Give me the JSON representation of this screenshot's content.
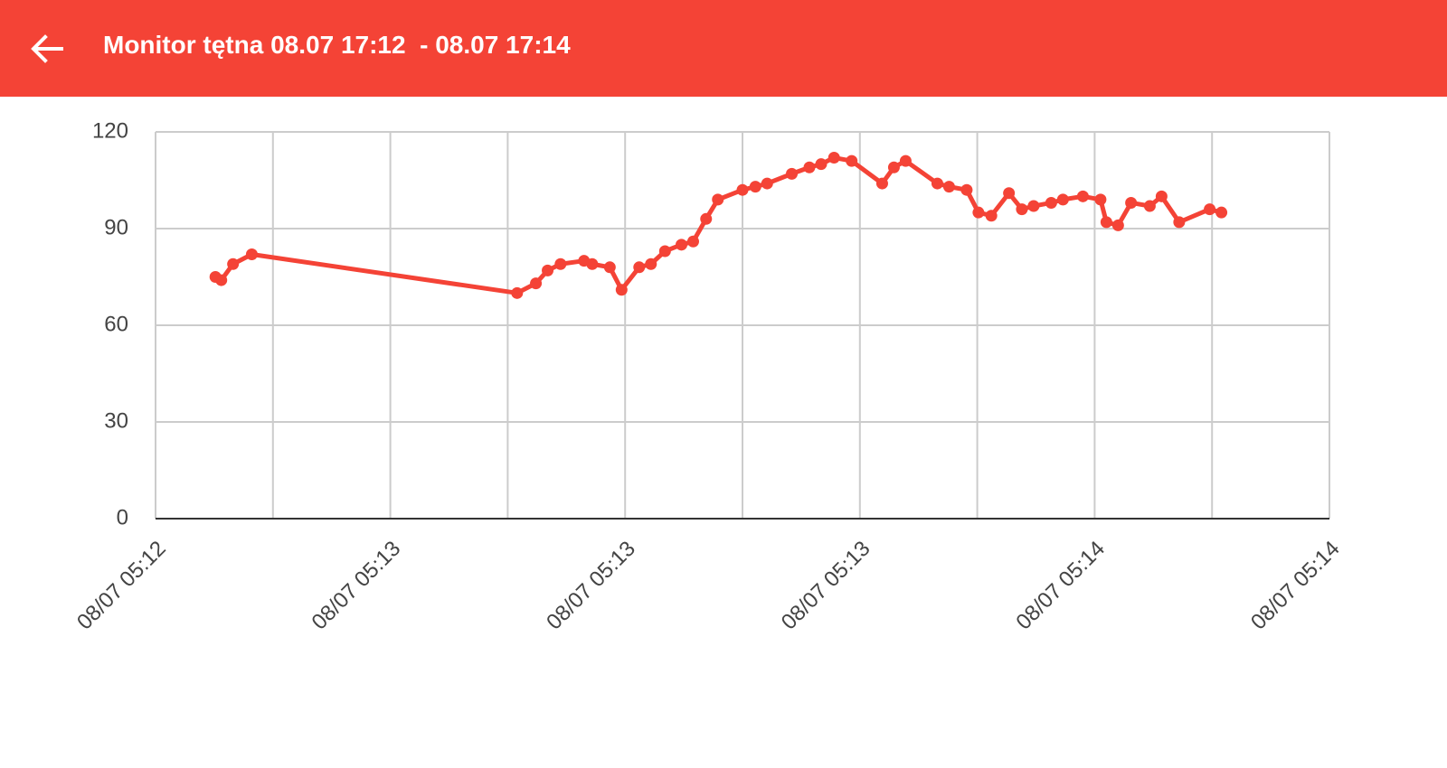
{
  "header": {
    "title": "Monitor tętna 08.07 17:12  - 08.07 17:14"
  },
  "chart_data": {
    "type": "line",
    "x": [
      55.1,
      55.6,
      56.6,
      58.2,
      80.8,
      82.4,
      83.4,
      84.5,
      86.5,
      87.2,
      88.7,
      89.7,
      91.2,
      92.2,
      93.4,
      94.8,
      95.8,
      96.9,
      97.9,
      100.0,
      101.1,
      102.1,
      104.2,
      105.7,
      106.7,
      107.8,
      109.3,
      111.9,
      112.9,
      113.9,
      116.6,
      117.6,
      119.1,
      120.1,
      121.2,
      122.7,
      123.8,
      124.8,
      126.3,
      127.3,
      129.0,
      130.5,
      131.0,
      132.0,
      133.1,
      134.7,
      135.7,
      137.2,
      139.8,
      140.8
    ],
    "values": [
      75,
      74,
      79,
      82,
      70,
      73,
      77,
      79,
      80,
      79,
      78,
      71,
      78,
      79,
      83,
      85,
      86,
      93,
      99,
      102,
      103,
      104,
      107,
      109,
      110,
      112,
      111,
      104,
      109,
      111,
      104,
      103,
      102,
      95,
      94,
      101,
      96,
      97,
      98,
      99,
      100,
      99,
      92,
      91,
      98,
      97,
      100,
      92,
      96,
      95
    ],
    "color": "#f44336",
    "xlim": [
      50,
      150
    ],
    "xticks": [
      {
        "value": 50,
        "label": "08/07 05:12"
      },
      {
        "value": 70,
        "label": "08/07 05:13"
      },
      {
        "value": 90,
        "label": "08/07 05:13"
      },
      {
        "value": 110,
        "label": "08/07 05:13"
      },
      {
        "value": 130,
        "label": "08/07 05:14"
      },
      {
        "value": 150,
        "label": "08/07 05:14"
      }
    ],
    "x_minor_ticks": [
      60,
      80,
      100,
      120,
      140
    ],
    "ylim": [
      0,
      120
    ],
    "yticks": [
      0,
      30,
      60,
      90,
      120
    ],
    "grid": true
  }
}
